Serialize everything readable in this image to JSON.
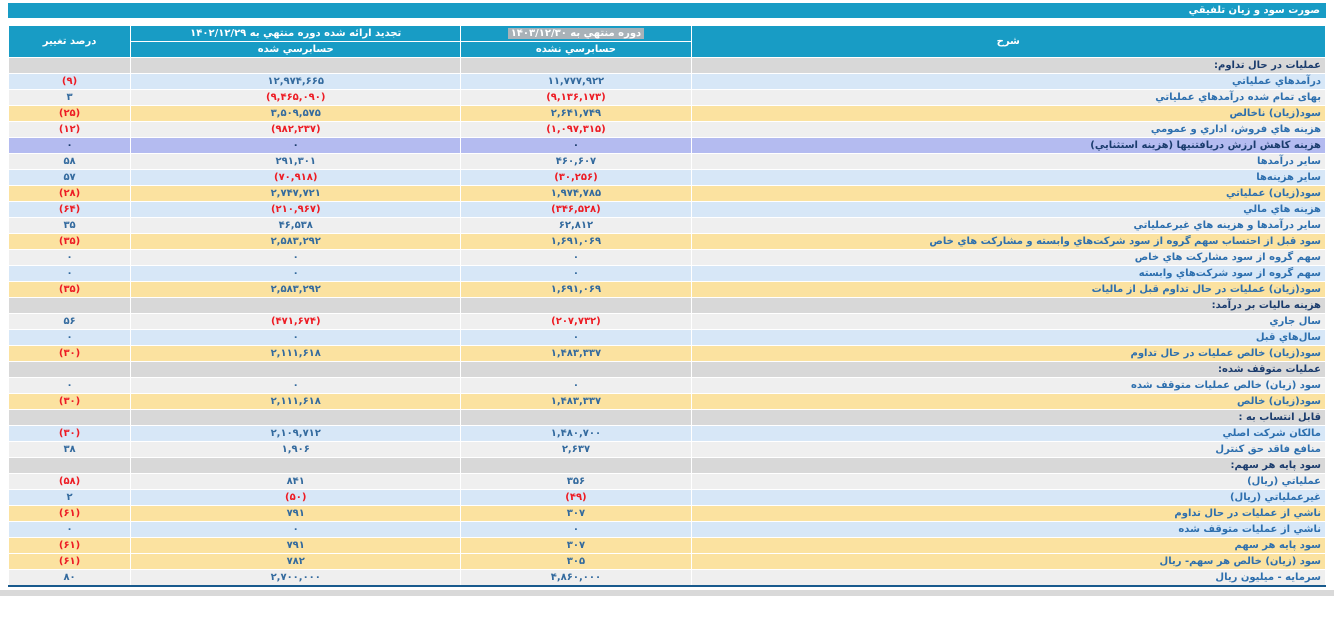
{
  "title": "صورت سود و زيان تلفيقي",
  "colors": {
    "header_teal": "#189cc5",
    "row_blue": "#d7e7f7",
    "row_gray": "#efefef",
    "row_yellow": "#fbe2a0",
    "row_lavender": "#b4bbf0",
    "row_section": "#d8d8d8",
    "number_blue": "#336a9e",
    "negative_red": "#ed1c24",
    "bottom_border": "#185a8d",
    "date_highlight": "#a9b2b8"
  },
  "table": {
    "headers": {
      "description": "شرح",
      "period_current": "دوره منتهي به ۱۴۰۳/۱۲/۳۰",
      "period_current_status": "حسابرسي نشده",
      "period_prior": "تجديد ارائه شده دوره منتهي به ۱۴۰۲/۱۲/۲۹",
      "period_prior_status": "حسابرسي شده",
      "percent_change": "درصد تغيير"
    },
    "rows": [
      {
        "label": "عملیات در حال تداوم:",
        "style": "section",
        "current": "",
        "prior": "",
        "change": ""
      },
      {
        "label": "درآمدهاي عملياتي",
        "style": "blue",
        "current": "۱۱,۷۷۷,۹۲۲",
        "prior": "۱۲,۹۷۴,۶۶۵",
        "change": "(۹)"
      },
      {
        "label": "بهای تمام شده درآمدهاي عملياتي",
        "style": "gray",
        "current": "(۹,۱۳۶,۱۷۳)",
        "prior": "(۹,۴۶۵,۰۹۰)",
        "change": "۳"
      },
      {
        "label": "سود(زيان) ناخالص",
        "style": "yellow",
        "current": "۲,۶۴۱,۷۴۹",
        "prior": "۳,۵۰۹,۵۷۵",
        "change": "(۲۵)"
      },
      {
        "label": "هزينه هاي فروش، اداري و عمومي",
        "style": "gray",
        "current": "(۱,۰۹۷,۳۱۵)",
        "prior": "(۹۸۲,۲۳۷)",
        "change": "(۱۲)"
      },
      {
        "label": "هزينه كاهش ارزش دريافتنيها (هزينه استثنايي)",
        "style": "lavender",
        "current": "۰",
        "prior": "۰",
        "change": "۰"
      },
      {
        "label": "ساير درآمدها",
        "style": "gray",
        "current": "۴۶۰,۶۰۷",
        "prior": "۲۹۱,۳۰۱",
        "change": "۵۸"
      },
      {
        "label": "ساير هزينه‌ها",
        "style": "blue",
        "current": "(۳۰,۲۵۶)",
        "prior": "(۷۰,۹۱۸)",
        "change": "۵۷"
      },
      {
        "label": "سود(زيان) عملياتي",
        "style": "yellow",
        "current": "۱,۹۷۴,۷۸۵",
        "prior": "۲,۷۴۷,۷۲۱",
        "change": "(۲۸)"
      },
      {
        "label": "هزينه هاي مالي",
        "style": "blue",
        "current": "(۳۴۶,۵۲۸)",
        "prior": "(۲۱۰,۹۶۷)",
        "change": "(۶۴)"
      },
      {
        "label": "ساير درآمدها و هزينه هاي غيرعملياتي",
        "style": "gray",
        "current": "۶۲,۸۱۲",
        "prior": "۴۶,۵۳۸",
        "change": "۳۵"
      },
      {
        "label": "سود قبل از احتساب سهم گروه از سود شركت‌هاي وابسته و مشاركت هاي خاص",
        "style": "yellow",
        "current": "۱,۶۹۱,۰۶۹",
        "prior": "۲,۵۸۳,۲۹۲",
        "change": "(۳۵)"
      },
      {
        "label": "سهم گروه از سود مشاركت هاي خاص",
        "style": "gray",
        "current": "۰",
        "prior": "۰",
        "change": "۰"
      },
      {
        "label": "سهم گروه از سود شركت‌هاي وابسته",
        "style": "blue",
        "current": "۰",
        "prior": "۰",
        "change": "۰"
      },
      {
        "label": "سود(زيان) عمليات در حال تداوم قبل از ماليات",
        "style": "yellow",
        "current": "۱,۶۹۱,۰۶۹",
        "prior": "۲,۵۸۳,۲۹۲",
        "change": "(۳۵)"
      },
      {
        "label": "هزينه ماليات بر درآمد:",
        "style": "section",
        "current": "",
        "prior": "",
        "change": ""
      },
      {
        "label": "سال جاري",
        "style": "gray",
        "current": "(۲۰۷,۷۳۲)",
        "prior": "(۴۷۱,۶۷۴)",
        "change": "۵۶"
      },
      {
        "label": "سال‌هاي قبل",
        "style": "blue",
        "current": "۰",
        "prior": "۰",
        "change": "۰"
      },
      {
        "label": "سود(زيان) خالص عمليات در حال تداوم",
        "style": "yellow",
        "current": "۱,۴۸۳,۳۳۷",
        "prior": "۲,۱۱۱,۶۱۸",
        "change": "(۳۰)"
      },
      {
        "label": "عمليات متوقف شده:",
        "style": "section",
        "current": "",
        "prior": "",
        "change": ""
      },
      {
        "label": "سود (زيان) خالص عمليات متوقف شده",
        "style": "gray",
        "current": "۰",
        "prior": "۰",
        "change": "۰"
      },
      {
        "label": "سود(زيان) خالص",
        "style": "yellow",
        "current": "۱,۴۸۳,۳۳۷",
        "prior": "۲,۱۱۱,۶۱۸",
        "change": "(۳۰)"
      },
      {
        "label": "قابل انتساب به :",
        "style": "section",
        "current": "",
        "prior": "",
        "change": ""
      },
      {
        "label": "مالكان شركت اصلي",
        "style": "blue",
        "current": "۱,۴۸۰,۷۰۰",
        "prior": "۲,۱۰۹,۷۱۲",
        "change": "(۳۰)"
      },
      {
        "label": "منافع فاقد حق كنترل",
        "style": "gray",
        "current": "۲,۶۳۷",
        "prior": "۱,۹۰۶",
        "change": "۳۸"
      },
      {
        "label": "سود پايه هر سهم:",
        "style": "section",
        "current": "",
        "prior": "",
        "change": ""
      },
      {
        "label": "عملياتي (ريال)",
        "style": "gray",
        "current": "۳۵۶",
        "prior": "۸۴۱",
        "change": "(۵۸)"
      },
      {
        "label": "غيرعملياتي (ريال)",
        "style": "blue",
        "current": "(۴۹)",
        "prior": "(۵۰)",
        "change": "۲"
      },
      {
        "label": "ناشي از عمليات در حال تداوم",
        "style": "yellow",
        "current": "۳۰۷",
        "prior": "۷۹۱",
        "change": "(۶۱)"
      },
      {
        "label": "ناشي از عمليات متوقف شده",
        "style": "blue",
        "current": "۰",
        "prior": "۰",
        "change": "۰"
      },
      {
        "label": "سود پايه هر سهم",
        "style": "yellow",
        "current": "۳۰۷",
        "prior": "۷۹۱",
        "change": "(۶۱)"
      },
      {
        "label": "سود (زيان) خالص هر سهم- ريال",
        "style": "yellow",
        "current": "۳۰۵",
        "prior": "۷۸۲",
        "change": "(۶۱)"
      },
      {
        "label": "سرمايه - ميليون ريال",
        "style": "gray",
        "current": "۴,۸۶۰,۰۰۰",
        "prior": "۲,۷۰۰,۰۰۰",
        "change": "۸۰"
      }
    ]
  }
}
